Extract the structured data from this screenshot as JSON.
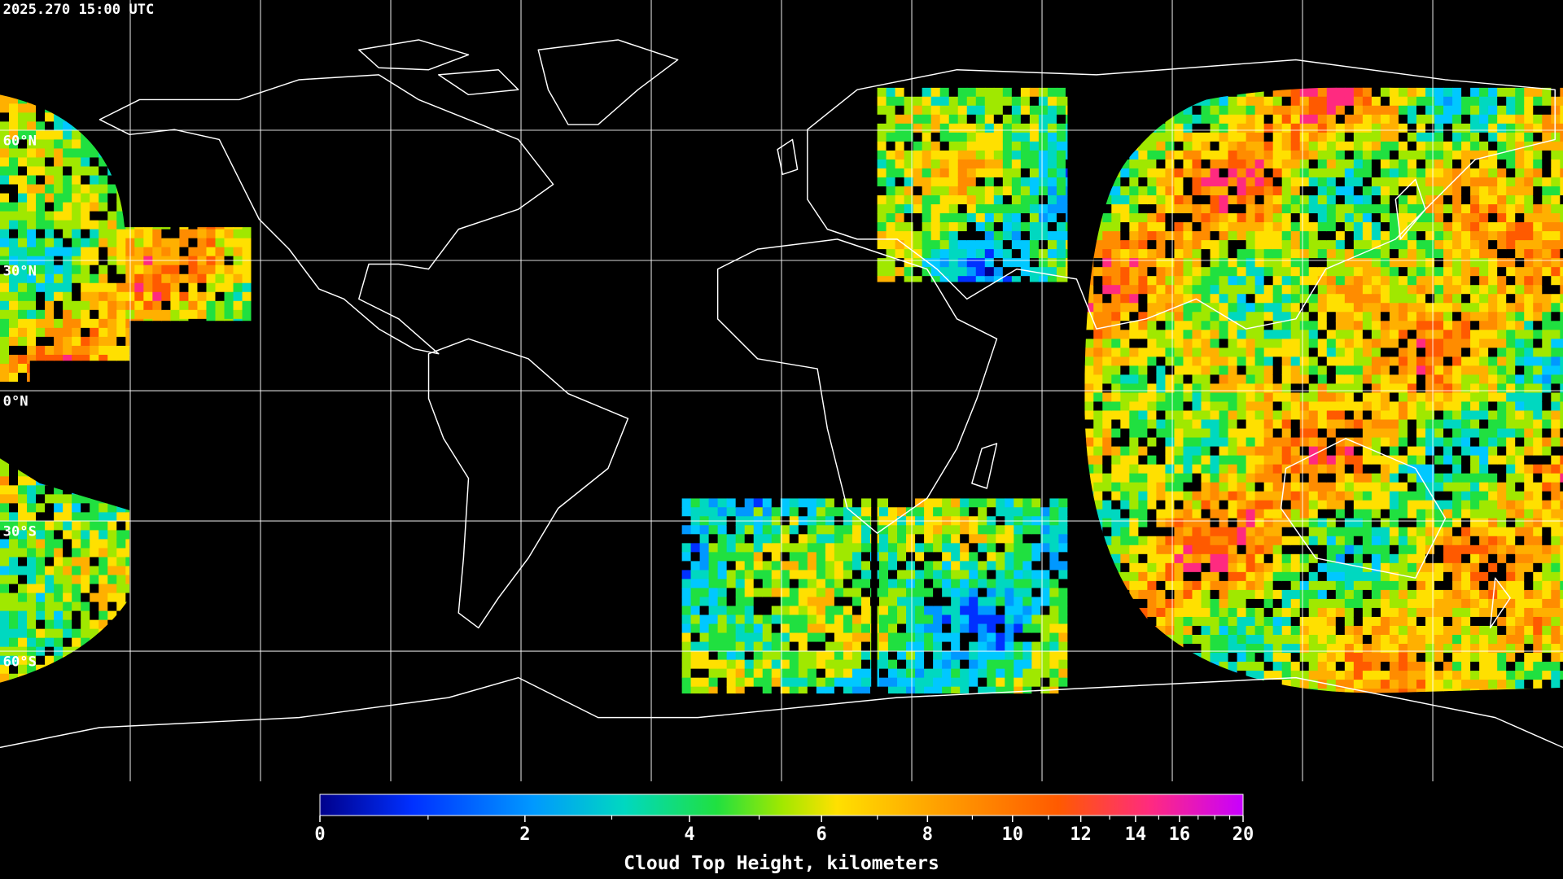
{
  "timestamp": "2025.270 15:00 UTC",
  "lat_labels": [
    "60°N",
    "30°N",
    "0°N",
    "30°S",
    "60°S"
  ],
  "colorbar": {
    "label": "Cloud Top Height, kilometers",
    "lim": [
      0,
      20
    ],
    "ticks": [
      0,
      2,
      4,
      6,
      8,
      10,
      12,
      14,
      16,
      20
    ],
    "minor_ticks": [
      1,
      3,
      5,
      7,
      9,
      11,
      13,
      15,
      17,
      18,
      19
    ]
  }
}
